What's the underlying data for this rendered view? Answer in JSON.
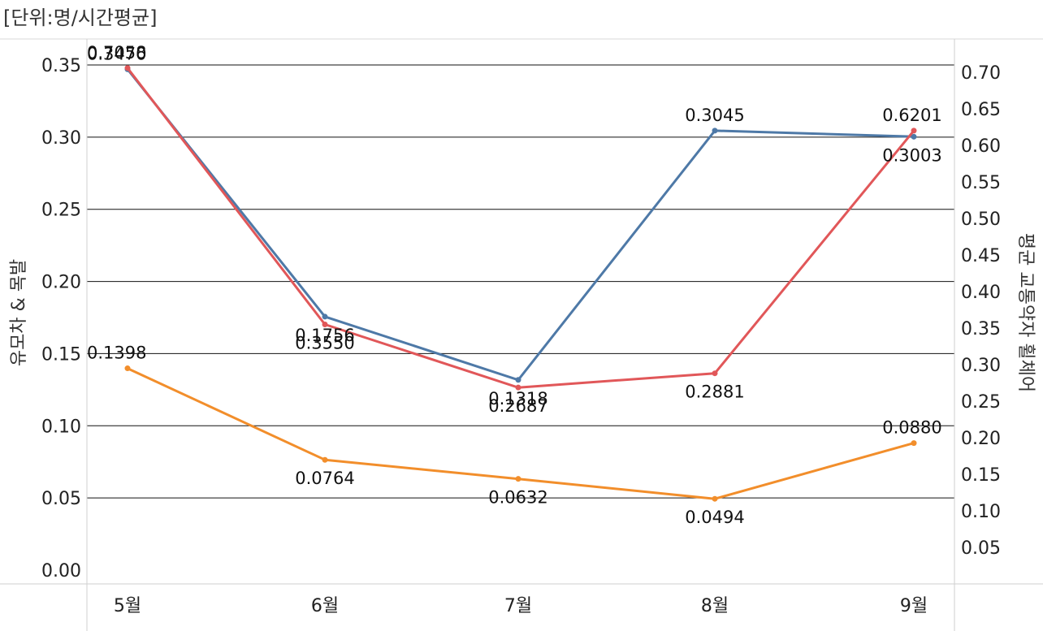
{
  "unit_label": "[단위:명/시간평균]",
  "chart_data": {
    "type": "line",
    "categories": [
      "5월",
      "6월",
      "7월",
      "8월",
      "9월"
    ],
    "y_left": {
      "label": "유모차 & 목발",
      "ticks": [
        "0.00",
        "0.05",
        "0.10",
        "0.15",
        "0.20",
        "0.25",
        "0.30",
        "0.35"
      ],
      "ylim": [
        0,
        0.35
      ]
    },
    "y_right": {
      "label": "평균 교통약자 휠체어",
      "ticks": [
        "0.05",
        "0.10",
        "0.15",
        "0.20",
        "0.25",
        "0.30",
        "0.35",
        "0.40",
        "0.45",
        "0.50",
        "0.55",
        "0.60",
        "0.65",
        "0.70"
      ],
      "ylim": [
        0.0,
        0.7
      ]
    },
    "grid": true,
    "series": [
      {
        "axis": "left",
        "color": "#4e79a7",
        "values": [
          0.347,
          0.1756,
          0.1318,
          0.3045,
          0.3003
        ],
        "labels": [
          "0.3470",
          "0.1756",
          "0.1318",
          "0.3045",
          "0.3003"
        ],
        "label_pos": [
          "above",
          "below",
          "below",
          "above",
          "below"
        ]
      },
      {
        "axis": "right",
        "color": "#e15759",
        "values": [
          0.7058,
          0.355,
          0.2687,
          0.2881,
          0.6201
        ],
        "labels": [
          "0.7058",
          "0.3550",
          "0.2687",
          "0.2881",
          "0.6201"
        ],
        "label_pos": [
          "above",
          "below",
          "below",
          "below",
          "above"
        ]
      },
      {
        "axis": "left",
        "color": "#f28e2b",
        "values": [
          0.1398,
          0.0764,
          0.0632,
          0.0494,
          0.088
        ],
        "labels": [
          "0.1398",
          "0.0764",
          "0.0632",
          "0.0494",
          "0.0880"
        ],
        "label_pos": [
          "above",
          "below",
          "below",
          "below",
          "above"
        ]
      }
    ]
  }
}
